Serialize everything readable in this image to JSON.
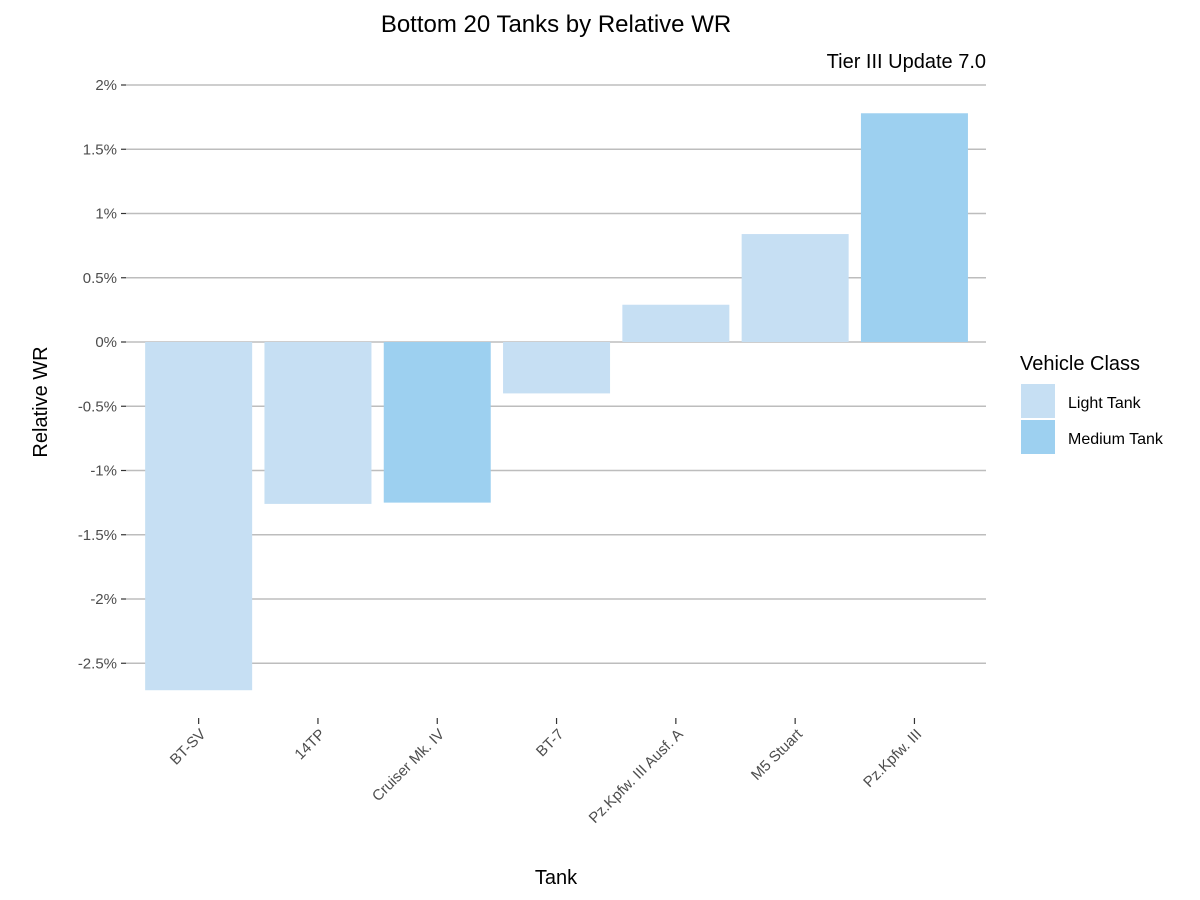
{
  "chart_data": {
    "type": "bar",
    "title": "Bottom 20 Tanks by Relative WR",
    "subtitle": "Tier III Update 7.0",
    "xlabel": "Tank",
    "ylabel": "Relative WR",
    "ylim": [
      -2.75,
      2.0
    ],
    "yticks": [
      2,
      1.5,
      1,
      0.5,
      0,
      -0.5,
      -1,
      -1.5,
      -2,
      -2.5
    ],
    "ytick_labels": [
      "2%",
      "1.5%",
      "1%",
      "0.5%",
      "0%",
      "-0.5%",
      "-1%",
      "-1.5%",
      "-2%",
      "-2.5%"
    ],
    "grid": true,
    "legend_position": "right",
    "legend_title": "Vehicle Class",
    "legend": [
      {
        "name": "Light Tank",
        "color": "#c6dff3"
      },
      {
        "name": "Medium Tank",
        "color": "#9dd0f0"
      }
    ],
    "categories": [
      "BT-SV",
      "14TP",
      "Cruiser Mk. IV",
      "BT-7",
      "Pz.Kpfw. III Ausf. A",
      "M5 Stuart",
      "Pz.Kpfw. III"
    ],
    "values": [
      -2.71,
      -1.26,
      -1.25,
      -0.4,
      0.29,
      0.84,
      1.78
    ],
    "classes": [
      "Light Tank",
      "Light Tank",
      "Medium Tank",
      "Light Tank",
      "Light Tank",
      "Light Tank",
      "Medium Tank"
    ]
  }
}
